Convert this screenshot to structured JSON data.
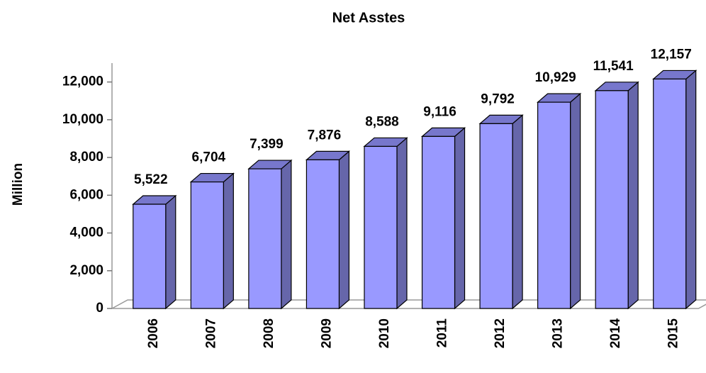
{
  "chart_data": {
    "type": "bar",
    "title": "Net Asstes",
    "y_label": "Million",
    "categories": [
      "2006",
      "2007",
      "2008",
      "2009",
      "2010",
      "2011",
      "2012",
      "2013",
      "2014",
      "2015"
    ],
    "values": [
      5522,
      6704,
      7399,
      7876,
      8588,
      9116,
      9792,
      10929,
      11541,
      12157
    ],
    "value_labels": [
      "5,522",
      "6,704",
      "7,399",
      "7,876",
      "8,588",
      "9,116",
      "9,792",
      "10,929",
      "11,541",
      "12,157"
    ],
    "color": "#9999ff",
    "ylim": [
      0,
      13000
    ],
    "yticks": [
      0,
      {
        "value": 2000,
        "label": "2,000"
      },
      {
        "value": 4000,
        "label": "4,000"
      },
      {
        "value": 6000,
        "label": "6,000"
      },
      {
        "value": 8000,
        "label": "8,000"
      },
      {
        "value": 10000,
        "label": "10,000"
      },
      {
        "value": 12000,
        "label": "12,000"
      }
    ],
    "grid": false
  }
}
